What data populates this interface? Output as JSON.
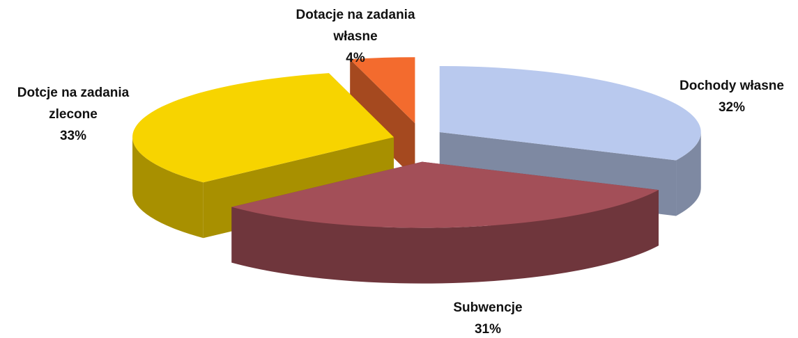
{
  "chart_data": {
    "type": "pie3d",
    "categories": [
      "Dochody własne",
      "Subwencje",
      "Dotcje na zadania zlecone",
      "Dotacje na zadania własne"
    ],
    "values": [
      32,
      31,
      33,
      4
    ],
    "value_labels": [
      "32%",
      "31%",
      "33%",
      "4%"
    ],
    "colors": [
      "#b9c9ee",
      "#a34f58",
      "#f7d400",
      "#f36b2e"
    ]
  }
}
